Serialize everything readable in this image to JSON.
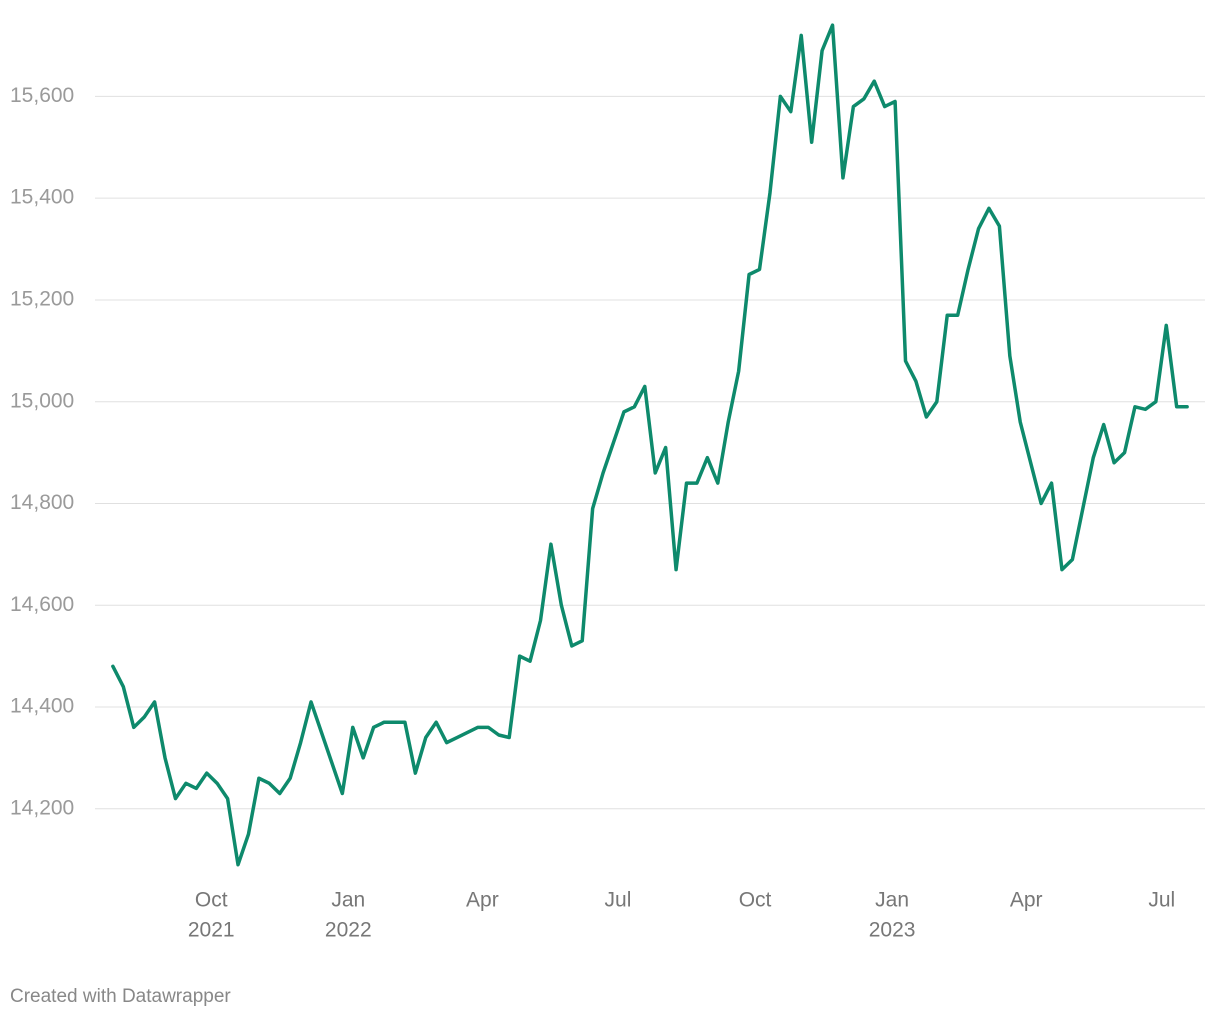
{
  "chart_data": {
    "type": "line",
    "x": [
      "2021-07-27",
      "2021-08-03",
      "2021-08-10",
      "2021-08-17",
      "2021-08-24",
      "2021-08-31",
      "2021-09-07",
      "2021-09-14",
      "2021-09-21",
      "2021-09-28",
      "2021-10-05",
      "2021-10-12",
      "2021-10-19",
      "2021-10-26",
      "2021-11-02",
      "2021-11-09",
      "2021-11-16",
      "2021-11-23",
      "2021-11-30",
      "2021-12-07",
      "2021-12-14",
      "2021-12-21",
      "2021-12-28",
      "2022-01-04",
      "2022-01-11",
      "2022-01-18",
      "2022-01-25",
      "2022-02-01",
      "2022-02-08",
      "2022-02-15",
      "2022-02-22",
      "2022-03-01",
      "2022-03-08",
      "2022-03-15",
      "2022-03-22",
      "2022-03-29",
      "2022-04-05",
      "2022-04-12",
      "2022-04-19",
      "2022-04-26",
      "2022-05-03",
      "2022-05-10",
      "2022-05-17",
      "2022-05-24",
      "2022-05-31",
      "2022-06-07",
      "2022-06-14",
      "2022-06-21",
      "2022-06-28",
      "2022-07-05",
      "2022-07-12",
      "2022-07-19",
      "2022-07-26",
      "2022-08-02",
      "2022-08-09",
      "2022-08-16",
      "2022-08-23",
      "2022-08-30",
      "2022-09-06",
      "2022-09-13",
      "2022-09-20",
      "2022-09-27",
      "2022-10-04",
      "2022-10-11",
      "2022-10-18",
      "2022-10-25",
      "2022-11-01",
      "2022-11-08",
      "2022-11-15",
      "2022-11-22",
      "2022-11-29",
      "2022-12-06",
      "2022-12-13",
      "2022-12-20",
      "2022-12-27",
      "2023-01-03",
      "2023-01-10",
      "2023-01-17",
      "2023-01-24",
      "2023-01-31",
      "2023-02-07",
      "2023-02-14",
      "2023-02-21",
      "2023-02-28",
      "2023-03-07",
      "2023-03-14",
      "2023-03-21",
      "2023-03-28",
      "2023-04-04",
      "2023-04-11",
      "2023-04-18",
      "2023-04-25",
      "2023-05-02",
      "2023-05-09",
      "2023-05-16",
      "2023-05-23",
      "2023-05-30",
      "2023-06-06",
      "2023-06-13",
      "2023-06-20",
      "2023-06-27",
      "2023-07-04",
      "2023-07-11",
      "2023-07-18"
    ],
    "series": [
      {
        "color": "#0e8a6c",
        "values": [
          14480,
          14440,
          14360,
          14380,
          14410,
          14300,
          14220,
          14250,
          14240,
          14270,
          14250,
          14220,
          14090,
          14150,
          14260,
          14250,
          14230,
          14260,
          14330,
          14410,
          14350,
          14290,
          14230,
          14360,
          14300,
          14360,
          14370,
          14370,
          14370,
          14270,
          14340,
          14370,
          14330,
          14340,
          14350,
          14360,
          14360,
          14345,
          14340,
          14500,
          14490,
          14570,
          14720,
          14600,
          14520,
          14530,
          14790,
          14860,
          14920,
          14980,
          14990,
          15030,
          14860,
          14910,
          14670,
          14840,
          14840,
          14890,
          14840,
          14960,
          15060,
          15250,
          15260,
          15410,
          15600,
          15570,
          15720,
          15510,
          15690,
          15740,
          15440,
          15580,
          15595,
          15630,
          15580,
          15590,
          15080,
          15040,
          14970,
          15000,
          15170,
          15170,
          15260,
          15340,
          15380,
          15345,
          15090,
          14960,
          14880,
          14800,
          14840,
          14670,
          14690,
          14790,
          14890,
          14955,
          14880,
          14900,
          14990,
          14985,
          15000,
          15150,
          14990,
          14990
        ]
      }
    ],
    "xlim": [
      "2021-07-15",
      "2023-07-30"
    ],
    "xticks": [
      {
        "value": "2021-10-01",
        "label": [
          "Oct",
          "2021"
        ]
      },
      {
        "value": "2022-01-01",
        "label": [
          "Jan",
          "2022"
        ]
      },
      {
        "value": "2022-04-01",
        "label": [
          "Apr"
        ]
      },
      {
        "value": "2022-07-01",
        "label": [
          "Jul"
        ]
      },
      {
        "value": "2022-10-01",
        "label": [
          "Oct"
        ]
      },
      {
        "value": "2023-01-01",
        "label": [
          "Jan",
          "2023"
        ]
      },
      {
        "value": "2023-04-01",
        "label": [
          "Apr"
        ]
      },
      {
        "value": "2023-07-01",
        "label": [
          "Jul"
        ]
      }
    ],
    "ylim": [
      14060,
      15760
    ],
    "yticks": [
      {
        "value": 14200,
        "label": "14,200"
      },
      {
        "value": 14400,
        "label": "14,400"
      },
      {
        "value": 14600,
        "label": "14,600"
      },
      {
        "value": 14800,
        "label": "14,800"
      },
      {
        "value": 15000,
        "label": "15,000"
      },
      {
        "value": 15200,
        "label": "15,200"
      },
      {
        "value": 15400,
        "label": "15,400"
      },
      {
        "value": 15600,
        "label": "15,600"
      }
    ],
    "grid": true,
    "footer": "Created with Datawrapper"
  }
}
